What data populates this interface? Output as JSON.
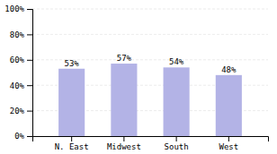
{
  "chart_data": {
    "type": "bar",
    "categories": [
      "N. East",
      "Midwest",
      "South",
      "West"
    ],
    "values": [
      53,
      57,
      54,
      48
    ],
    "value_labels": [
      "53%",
      "57%",
      "54%",
      "48%"
    ],
    "data_labels": true,
    "color": "#b3b3e6",
    "ylim": [
      0,
      100
    ],
    "yticks": [
      {
        "value": 0,
        "label": "0%"
      },
      {
        "value": 20,
        "label": "20%"
      },
      {
        "value": 40,
        "label": "40%"
      },
      {
        "value": 60,
        "label": "60%"
      },
      {
        "value": 80,
        "label": "80%"
      },
      {
        "value": 100,
        "label": "100%"
      }
    ],
    "grid": true
  }
}
